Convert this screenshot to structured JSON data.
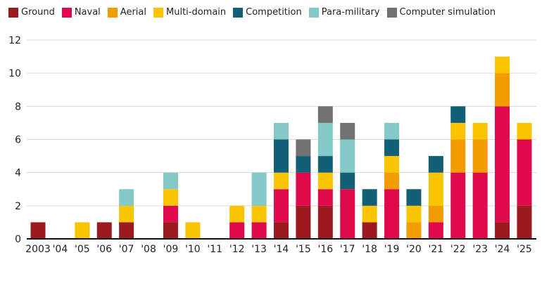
{
  "chart_data": {
    "type": "bar",
    "stacked": true,
    "categories": [
      "2003",
      "'04",
      "'05",
      "'06",
      "'07",
      "'08",
      "'09",
      "'10",
      "'11",
      "'12",
      "'13",
      "'14",
      "'15",
      "'16",
      "'17",
      "'18",
      "'19",
      "'20",
      "'21",
      "'22",
      "'23",
      "'24",
      "'25"
    ],
    "series": [
      {
        "name": "Ground",
        "color": "#9b1a1f",
        "values": [
          1,
          0,
          0,
          1,
          1,
          0,
          1,
          0,
          0,
          0,
          0,
          1,
          2,
          2,
          0,
          1,
          0,
          0,
          0,
          0,
          0,
          1,
          2
        ]
      },
      {
        "name": "Naval",
        "color": "#e0094b",
        "values": [
          0,
          0,
          0,
          0,
          0,
          0,
          1,
          0,
          0,
          1,
          1,
          2,
          2,
          1,
          3,
          0,
          3,
          0,
          1,
          4,
          4,
          7,
          4
        ]
      },
      {
        "name": "Aerial",
        "color": "#f39c00",
        "values": [
          0,
          0,
          0,
          0,
          0,
          0,
          0,
          0,
          0,
          0,
          0,
          0,
          0,
          0,
          0,
          0,
          1,
          1,
          1,
          2,
          2,
          2,
          0
        ]
      },
      {
        "name": "Multi-domain",
        "color": "#f9c400",
        "values": [
          0,
          0,
          1,
          0,
          1,
          0,
          1,
          1,
          0,
          1,
          1,
          1,
          0,
          1,
          0,
          1,
          1,
          1,
          2,
          1,
          1,
          1,
          1
        ]
      },
      {
        "name": "Competition",
        "color": "#135f78",
        "values": [
          0,
          0,
          0,
          0,
          0,
          0,
          0,
          0,
          0,
          0,
          0,
          2,
          1,
          1,
          1,
          1,
          1,
          1,
          1,
          1,
          0,
          0,
          0
        ]
      },
      {
        "name": "Para-military",
        "color": "#85c8c8",
        "values": [
          0,
          0,
          0,
          0,
          1,
          0,
          1,
          0,
          0,
          0,
          2,
          1,
          0,
          2,
          2,
          0,
          1,
          0,
          0,
          0,
          0,
          0,
          0
        ]
      },
      {
        "name": "Computer simulation",
        "color": "#717171",
        "values": [
          0,
          0,
          0,
          0,
          0,
          0,
          0,
          0,
          0,
          0,
          0,
          0,
          1,
          1,
          1,
          0,
          0,
          0,
          0,
          0,
          0,
          0,
          0
        ]
      }
    ],
    "ylim": [
      0,
      12
    ],
    "yticks": [
      "0",
      "2",
      "4",
      "6",
      "8",
      "10",
      "12"
    ],
    "grid": true,
    "legend": "top-left",
    "title": "",
    "xlabel": "",
    "ylabel": ""
  }
}
